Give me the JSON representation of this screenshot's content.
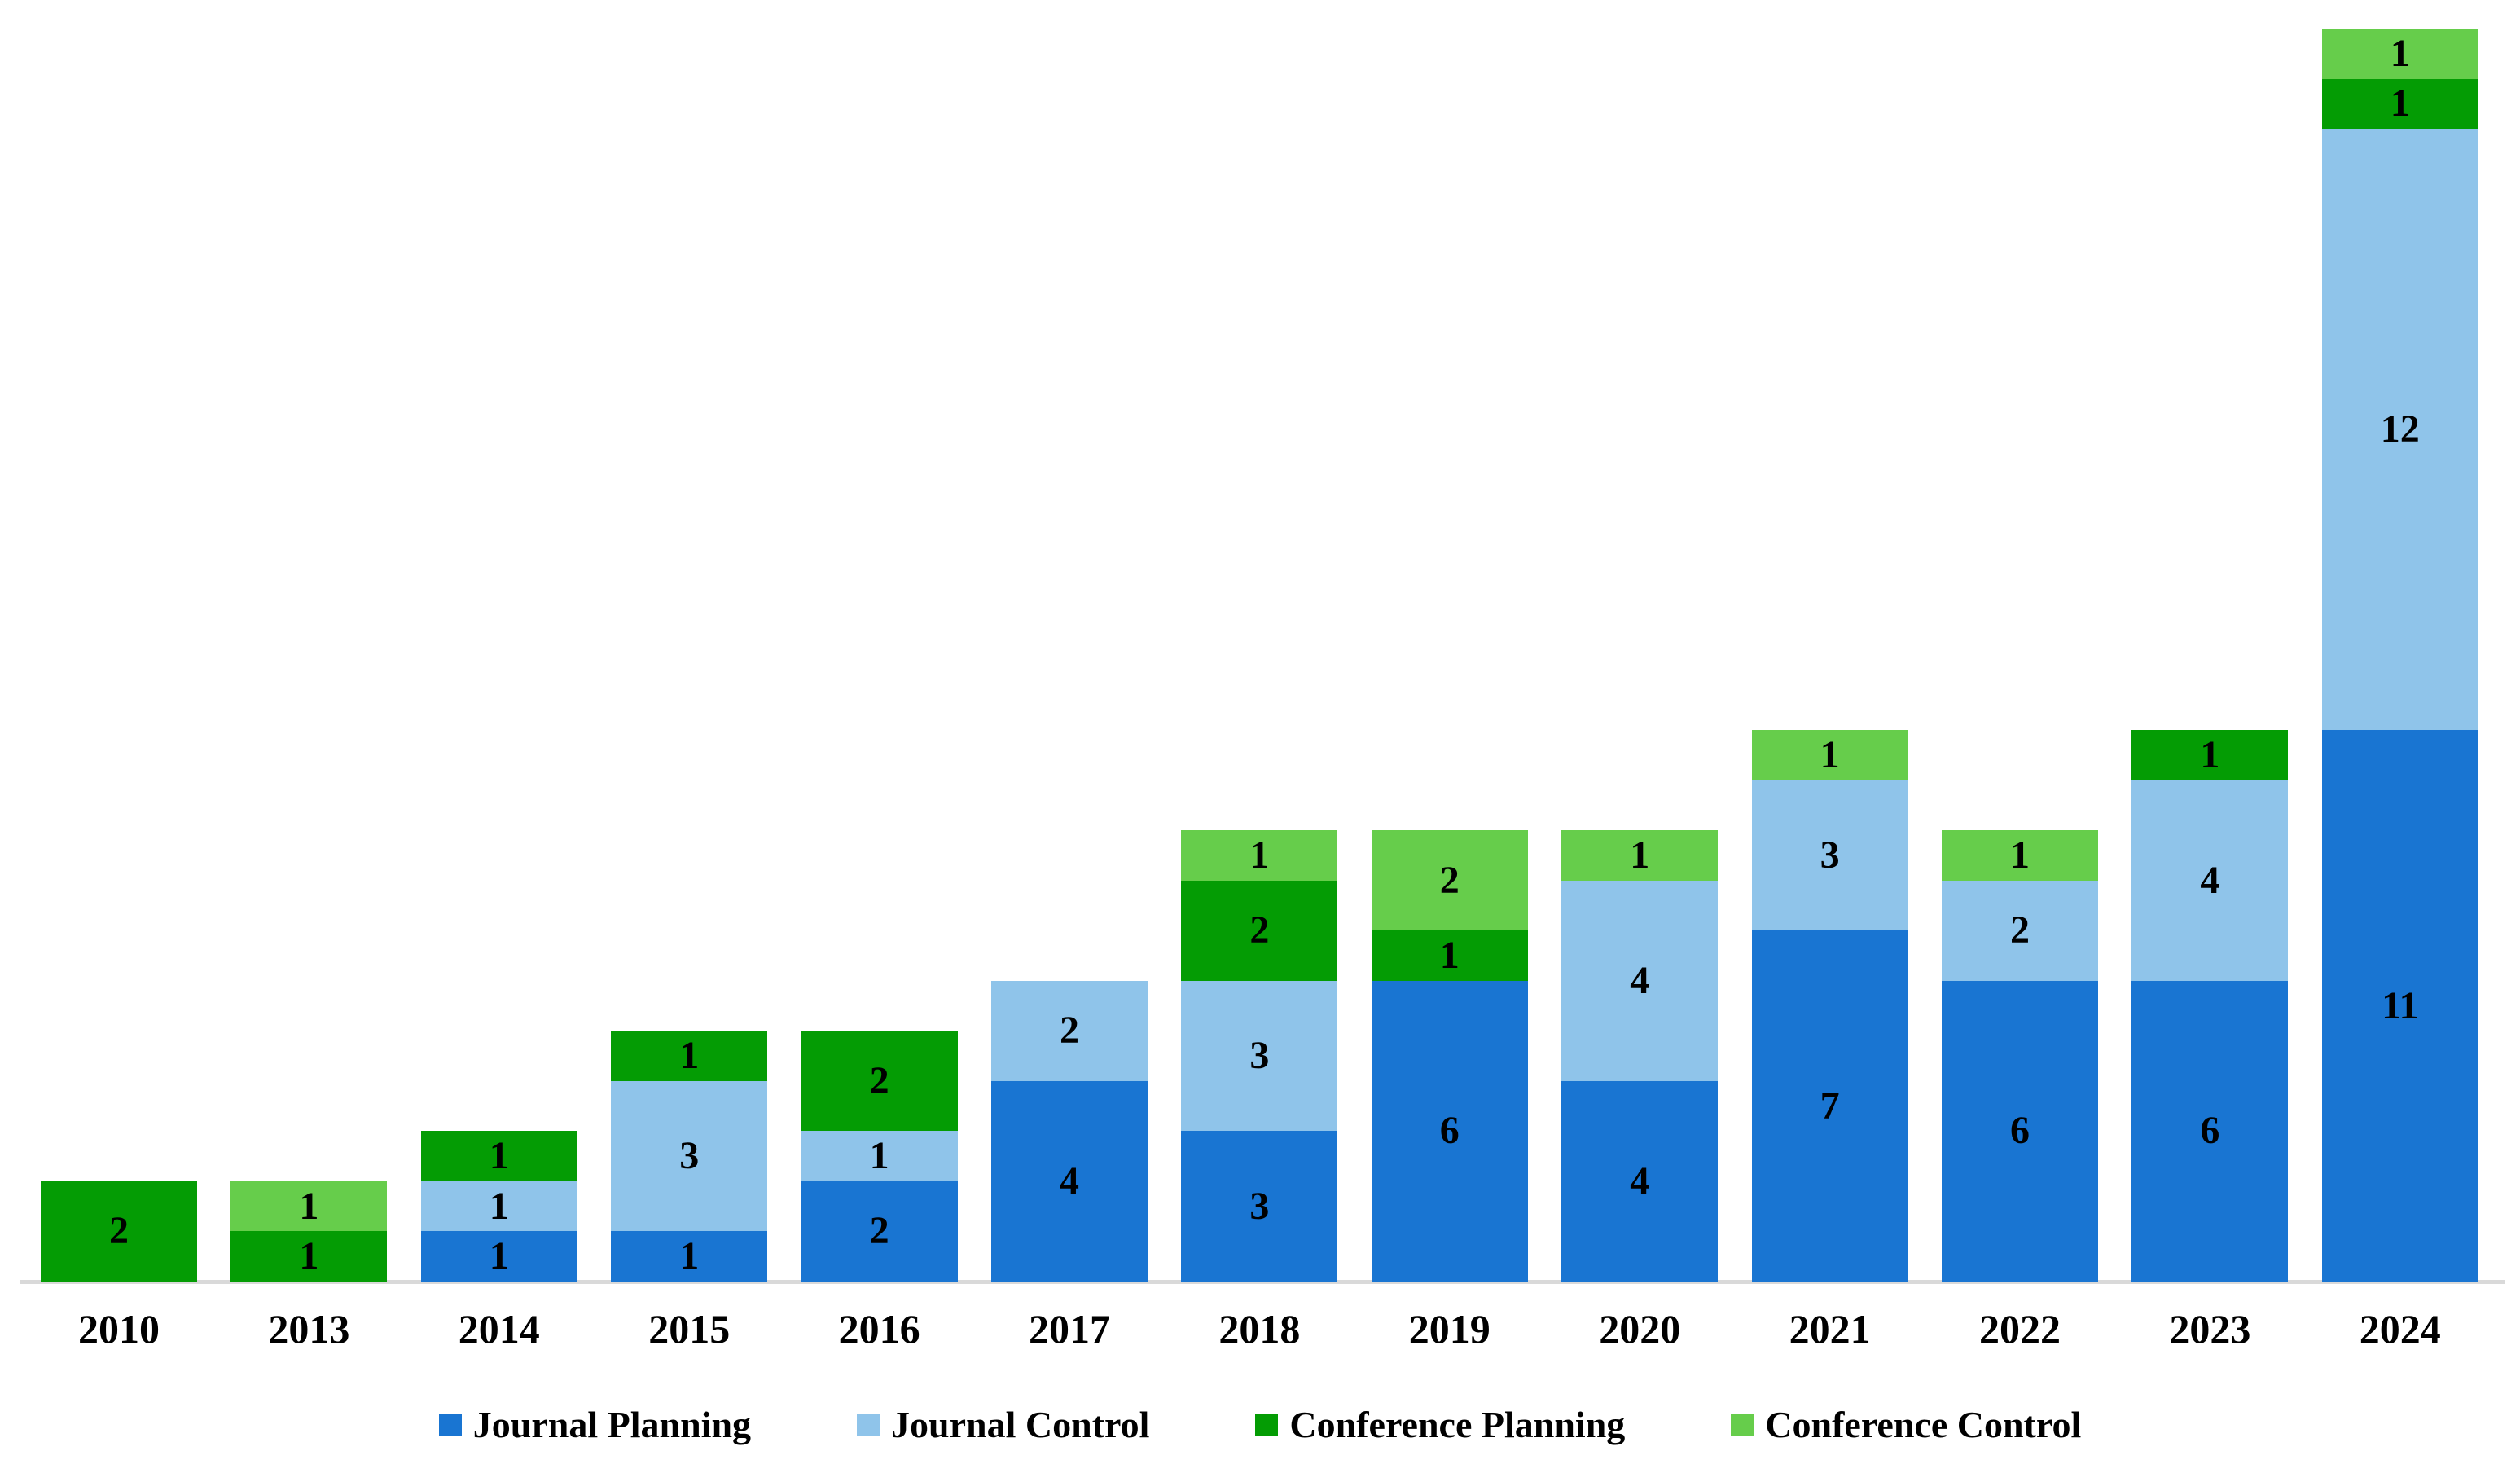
{
  "chart_data": {
    "type": "bar",
    "stacked": true,
    "title": "",
    "xlabel": "",
    "ylabel": "",
    "ylim": [
      0,
      25
    ],
    "grid": false,
    "axis_baseline_color": "#d9d9d9",
    "value_labels_shown": true,
    "categories": [
      "2010",
      "2013",
      "2014",
      "2015",
      "2016",
      "2017",
      "2018",
      "2019",
      "2020",
      "2021",
      "2022",
      "2023",
      "2024"
    ],
    "series": [
      {
        "name": "Journal Planning",
        "color": "#1975d2",
        "values": [
          0,
          0,
          1,
          1,
          2,
          4,
          3,
          6,
          4,
          7,
          6,
          6,
          11
        ]
      },
      {
        "name": "Journal Control",
        "color": "#8fc4ea",
        "values": [
          0,
          0,
          1,
          3,
          1,
          2,
          3,
          0,
          4,
          3,
          2,
          4,
          12
        ]
      },
      {
        "name": "Conference Planning",
        "color": "#049c04",
        "values": [
          2,
          1,
          1,
          1,
          2,
          0,
          2,
          1,
          0,
          0,
          0,
          1,
          1
        ]
      },
      {
        "name": "Conference Control",
        "color": "#66cd4b",
        "values": [
          0,
          1,
          0,
          0,
          0,
          0,
          1,
          2,
          1,
          1,
          1,
          0,
          1
        ]
      }
    ],
    "totals": [
      2,
      2,
      3,
      5,
      5,
      6,
      9,
      9,
      9,
      11,
      9,
      11,
      25
    ],
    "legend": {
      "position": "bottom",
      "items": [
        "Journal Planning",
        "Journal Control",
        "Conference Planning",
        "Conference Control"
      ]
    }
  }
}
